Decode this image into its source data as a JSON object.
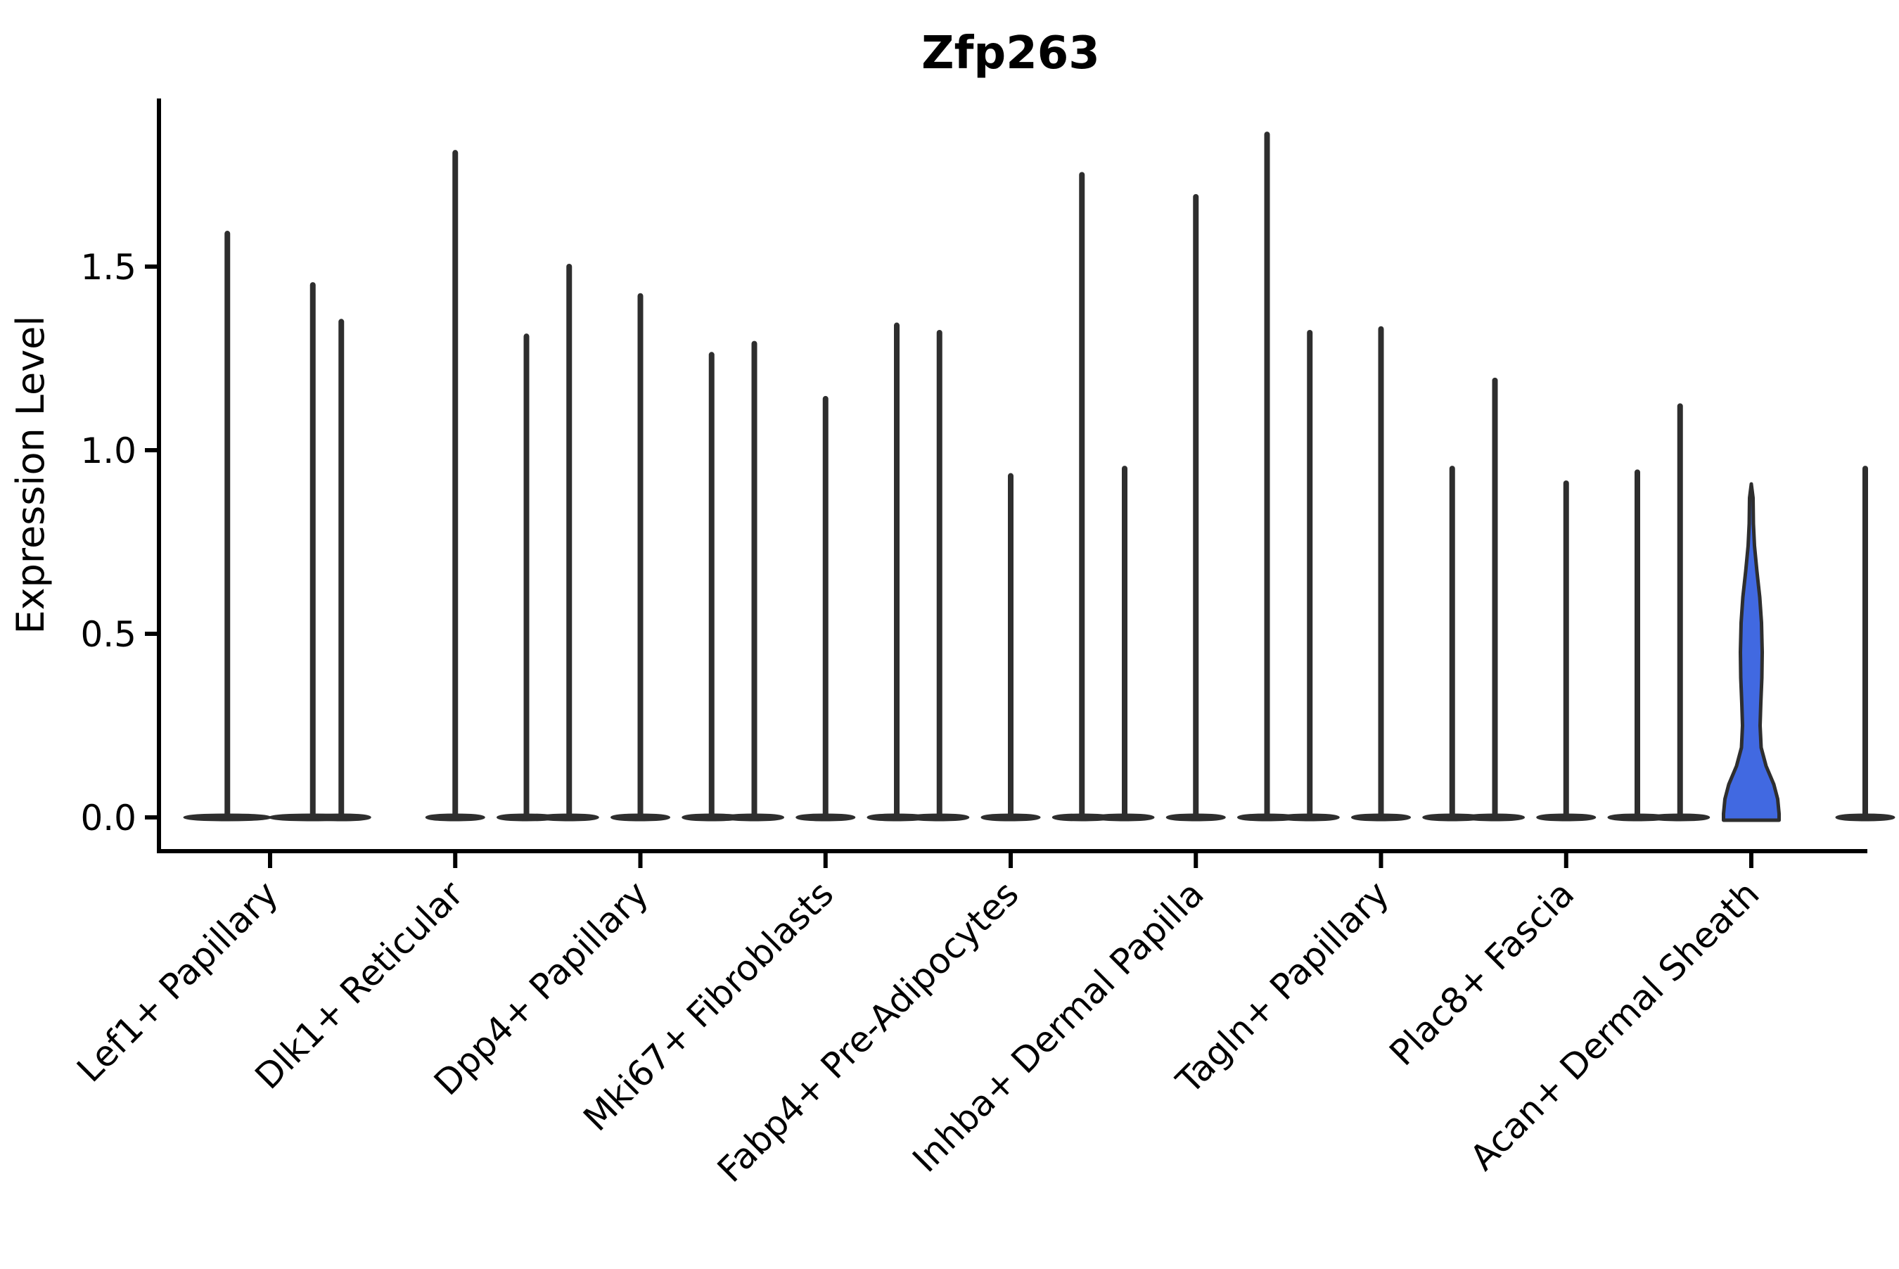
{
  "title": "Zfp263",
  "ylabel": "Expression Level",
  "colors": {
    "highlight_fill": "#4169E1",
    "violin_outline": "#2e2e2e",
    "axis": "#000000",
    "text": "#000000",
    "background": "#ffffff"
  },
  "chart_data": {
    "type": "violin",
    "title": "Zfp263",
    "xlabel": "",
    "ylabel": "Expression Level",
    "grid": false,
    "legend_position": "none",
    "ylim": [
      -0.09,
      1.96
    ],
    "yticks": [
      {
        "value": 0.0,
        "label": "0.0"
      },
      {
        "value": 0.5,
        "label": "0.5"
      },
      {
        "value": 1.0,
        "label": "1.0"
      },
      {
        "value": 1.5,
        "label": "1.5"
      }
    ],
    "categories": [
      "Lef1+ Papillary",
      "Dlk1+ Reticular",
      "Dpp4+ Papillary",
      "Mki67+ Fibroblasts",
      "Fabp4+ Pre-Adipocytes",
      "Inhba+ Dermal Papilla",
      "Tagln+ Papillary",
      "Plac8+ Fascia",
      "Acan+ Dermal Sheath"
    ],
    "groups": [
      {
        "label": "Lef1+ Papillary",
        "violins": [
          {
            "max": 1.59
          },
          {
            "max": 1.45
          }
        ]
      },
      {
        "label": "Dlk1+ Reticular",
        "violins": [
          {
            "max": 1.35
          },
          {
            "max": 1.81
          },
          {
            "max": 1.5
          }
        ]
      },
      {
        "label": "Dpp4+ Papillary",
        "violins": [
          {
            "max": 1.31
          },
          {
            "max": 1.42
          },
          {
            "max": 1.29
          }
        ]
      },
      {
        "label": "Mki67+ Fibroblasts",
        "violins": [
          {
            "max": 1.26
          },
          {
            "max": 1.14
          },
          {
            "max": 1.32
          }
        ]
      },
      {
        "label": "Fabp4+ Pre-Adipocytes",
        "violins": [
          {
            "max": 1.34
          },
          {
            "max": 0.93
          },
          {
            "max": 0.95
          }
        ]
      },
      {
        "label": "Inhba+ Dermal Papilla",
        "violins": [
          {
            "max": 1.75
          },
          {
            "max": 1.69
          },
          {
            "max": 1.32
          }
        ]
      },
      {
        "label": "Tagln+ Papillary",
        "violins": [
          {
            "max": 1.86
          },
          {
            "max": 1.33
          },
          {
            "max": 1.19
          }
        ]
      },
      {
        "label": "Plac8+ Fascia",
        "violins": [
          {
            "max": 0.95
          },
          {
            "max": 0.91
          },
          {
            "max": 1.12
          }
        ]
      },
      {
        "label": "Acan+ Dermal Sheath",
        "violins": [
          {
            "max": 0.94
          },
          {
            "max": 0.91,
            "highlight": true,
            "profile": [
              [
                0.908,
                0
              ],
              [
                0.87,
                2.5
              ],
              [
                0.8,
                3
              ],
              [
                0.74,
                4.5
              ],
              [
                0.67,
                8
              ],
              [
                0.6,
                12
              ],
              [
                0.53,
                14.5
              ],
              [
                0.45,
                15.5
              ],
              [
                0.38,
                15
              ],
              [
                0.31,
                13.5
              ],
              [
                0.25,
                12.5
              ],
              [
                0.19,
                14
              ],
              [
                0.14,
                21
              ],
              [
                0.09,
                32
              ],
              [
                0.05,
                37.5
              ],
              [
                0.01,
                39.5
              ],
              [
                0.0,
                39.5
              ]
            ]
          },
          {
            "max": 0.95
          }
        ]
      }
    ],
    "highlight_fill": "#4169E1",
    "outline_color": "#2e2e2e"
  }
}
